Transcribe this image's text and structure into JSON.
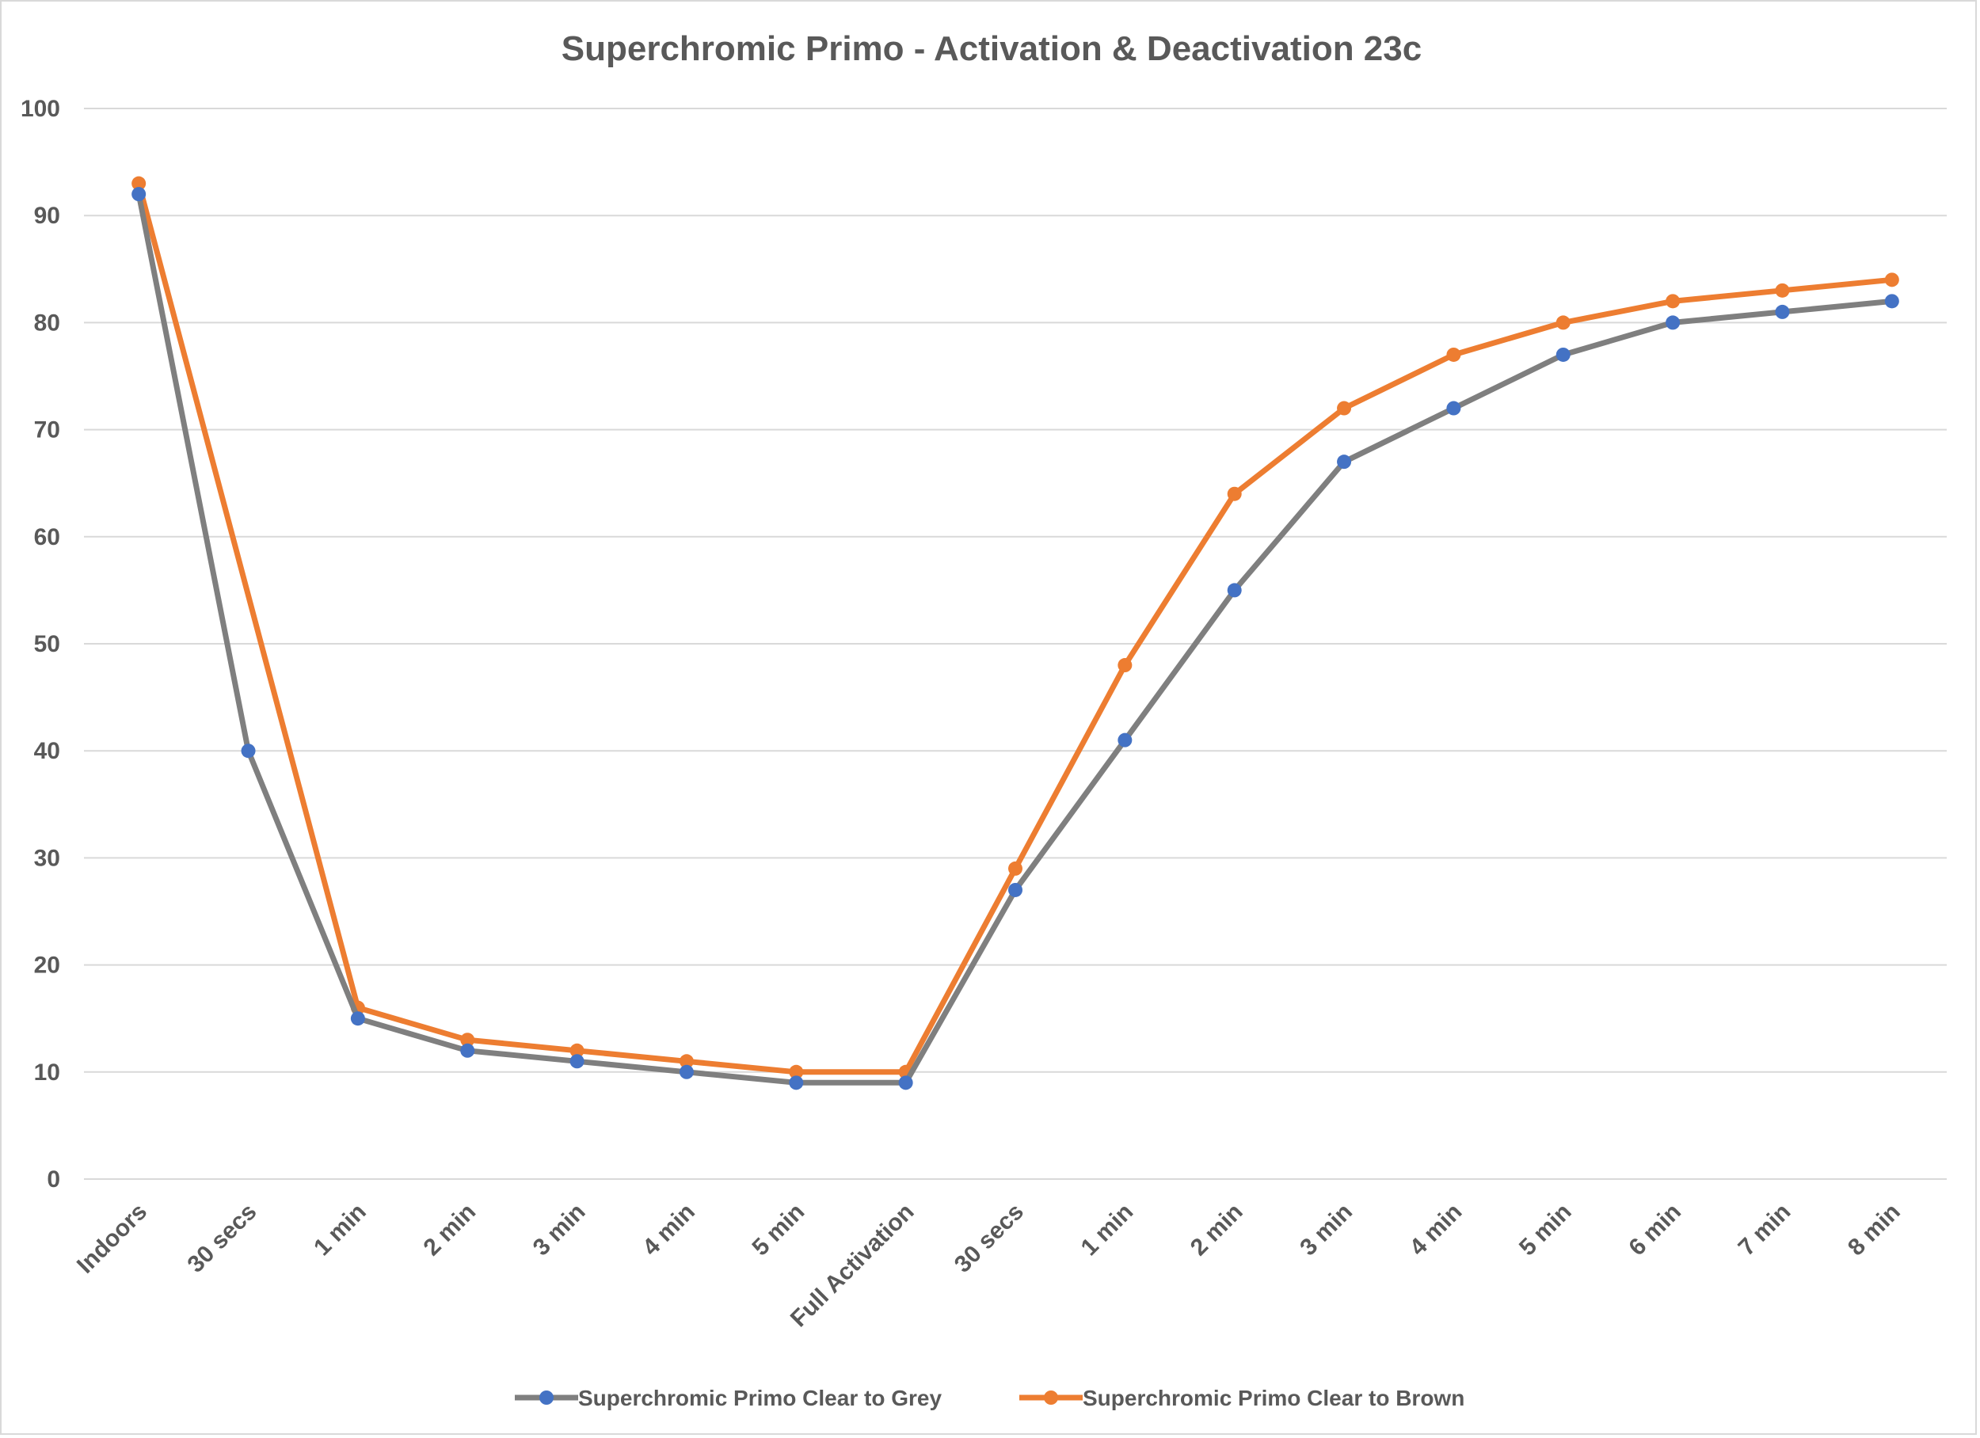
{
  "chart_data": {
    "type": "line",
    "title": "Superchromic Primo  - Activation & Deactivation 23c",
    "xlabel": "",
    "ylabel": "",
    "categories": [
      "Indoors",
      "30 secs",
      "1 min",
      "2 min",
      "3 min",
      "4 min",
      "5 min",
      "Full Activation",
      "30 secs",
      "1 min",
      "2 min",
      "3 min",
      "4 min",
      "5 min",
      "6 min",
      "7 min",
      "8 min"
    ],
    "ylim": [
      0,
      100
    ],
    "yticks": [
      0,
      10,
      20,
      30,
      40,
      50,
      60,
      70,
      80,
      90,
      100
    ],
    "grid": true,
    "legend_position": "bottom",
    "series": [
      {
        "name": "Superchromic Primo Clear to Grey",
        "line_color": "#7f7f7f",
        "marker_color": "#4472c4",
        "values": [
          92,
          40,
          15,
          12,
          11,
          10,
          9,
          9,
          27,
          41,
          55,
          67,
          72,
          77,
          80,
          81,
          82
        ]
      },
      {
        "name": "Superchromic Primo Clear to Brown",
        "line_color": "#ed7d31",
        "marker_color": "#ed7d31",
        "values": [
          93,
          null,
          16,
          13,
          12,
          11,
          10,
          10,
          29,
          48,
          64,
          72,
          77,
          80,
          82,
          83,
          84
        ]
      }
    ]
  }
}
